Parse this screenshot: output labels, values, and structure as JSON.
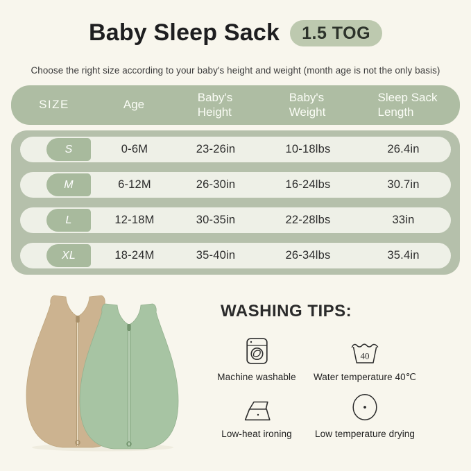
{
  "header": {
    "title": "Baby Sleep Sack",
    "tog_badge": "1.5 TOG",
    "subtitle": "Choose the right size according to your baby's height and weight (month age is not the only basis)"
  },
  "size_table": {
    "columns": [
      {
        "id": "size",
        "lines": [
          "SIZE"
        ]
      },
      {
        "id": "age",
        "lines": [
          "Age"
        ]
      },
      {
        "id": "baby-height",
        "lines": [
          "Baby's",
          "Height"
        ]
      },
      {
        "id": "baby-weight",
        "lines": [
          "Baby's",
          "Weight"
        ]
      },
      {
        "id": "sack-length",
        "lines": [
          "Sleep Sack",
          "Length"
        ]
      }
    ],
    "rows": [
      {
        "size": "S",
        "cells": [
          "0-6M",
          "23-26in",
          "10-18lbs",
          "26.4in"
        ]
      },
      {
        "size": "M",
        "cells": [
          "6-12M",
          "26-30in",
          "16-24lbs",
          "30.7in"
        ]
      },
      {
        "size": "L",
        "cells": [
          "12-18M",
          "30-35in",
          "22-28lbs",
          "33in"
        ]
      },
      {
        "size": "XL",
        "cells": [
          "18-24M",
          "35-40in",
          "26-34lbs",
          "35.4in"
        ]
      }
    ]
  },
  "washing": {
    "heading": "WASHING TIPS:",
    "tips": [
      {
        "icon": "washing-machine-icon",
        "label": "Machine washable"
      },
      {
        "icon": "water-temperature-icon",
        "label": "Water temperature 40℃",
        "icon_value": "40"
      },
      {
        "icon": "iron-icon",
        "label": "Low-heat ironing"
      },
      {
        "icon": "dry-icon",
        "label": "Low temperature drying"
      }
    ]
  },
  "product": {
    "description": "Two sleeveless baby sleep sacks with front zippers, tan and sage green"
  },
  "colors": {
    "background": "#f8f6ed",
    "table_header_green": "#aebda3",
    "table_body_green": "#b5c0ab",
    "row_light": "#eef0e7",
    "size_badge_green": "#a8ba9d",
    "tog_badge_green": "#bdc9af",
    "text_dark": "#262626",
    "sack_tan": "#ccb390",
    "sack_green": "#a7c4a3"
  }
}
